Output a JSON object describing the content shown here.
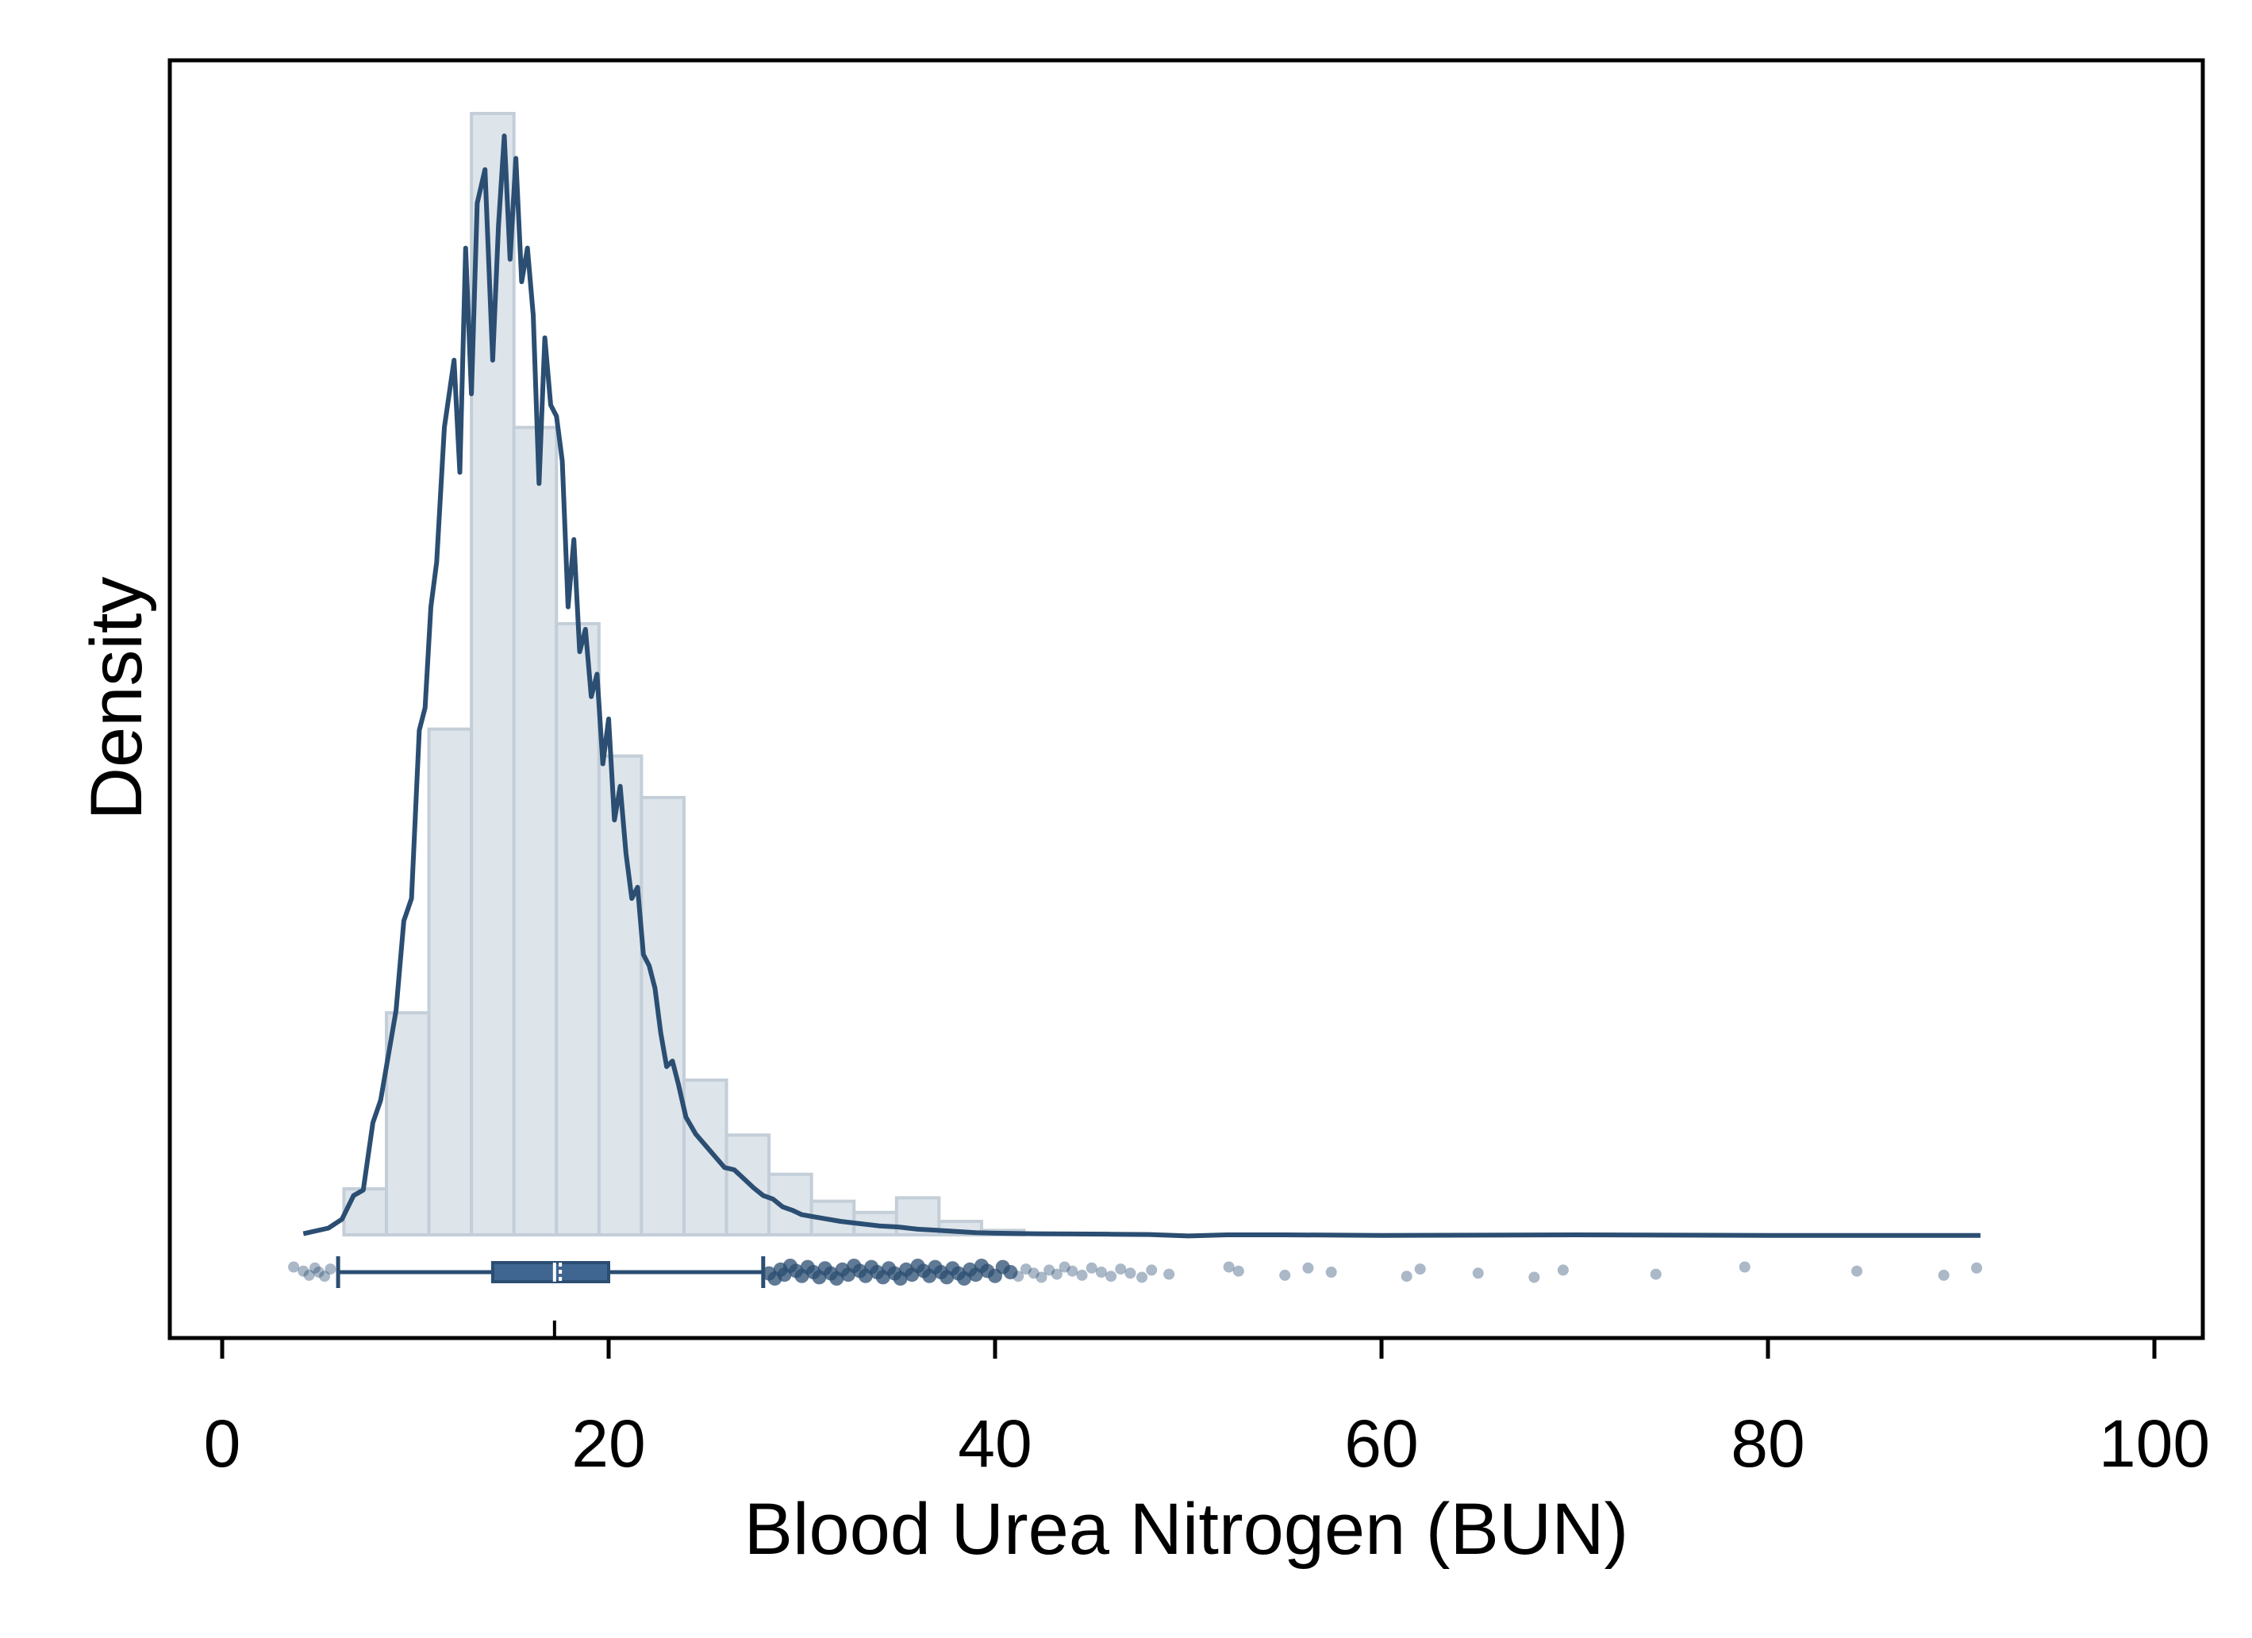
{
  "chart_data": {
    "type": "histogram",
    "xlabel": "Blood Urea Nitrogen (BUN)",
    "ylabel": "Density",
    "xlim": [
      -1.5,
      103
    ],
    "x_ticks": [
      0,
      20,
      40,
      60,
      80,
      100
    ],
    "x_tick_labels": [
      "0",
      "20",
      "40",
      "60",
      "80",
      "100"
    ],
    "y_ticks_shown": false,
    "grid": false,
    "legend": "none",
    "histogram": {
      "bin_width": 2.2,
      "bins": [
        {
          "x0": 6.3,
          "x1": 8.5,
          "height": 0.041
        },
        {
          "x0": 8.5,
          "x1": 10.7,
          "height": 0.198
        },
        {
          "x0": 10.7,
          "x1": 12.9,
          "height": 0.451
        },
        {
          "x0": 12.9,
          "x1": 15.1,
          "height": 1.0
        },
        {
          "x0": 15.1,
          "x1": 17.3,
          "height": 0.72
        },
        {
          "x0": 17.3,
          "x1": 19.5,
          "height": 0.545
        },
        {
          "x0": 19.5,
          "x1": 21.7,
          "height": 0.427
        },
        {
          "x0": 21.7,
          "x1": 23.9,
          "height": 0.39
        },
        {
          "x0": 23.9,
          "x1": 26.1,
          "height": 0.138
        },
        {
          "x0": 26.1,
          "x1": 28.3,
          "height": 0.089
        },
        {
          "x0": 28.3,
          "x1": 30.5,
          "height": 0.054
        },
        {
          "x0": 30.5,
          "x1": 32.7,
          "height": 0.03
        },
        {
          "x0": 32.7,
          "x1": 34.9,
          "height": 0.02
        },
        {
          "x0": 34.9,
          "x1": 37.1,
          "height": 0.033
        },
        {
          "x0": 37.1,
          "x1": 39.3,
          "height": 0.012
        },
        {
          "x0": 39.3,
          "x1": 41.5,
          "height": 0.004
        }
      ]
    },
    "density_curve": {
      "x": [
        4.2,
        5.5,
        6.2,
        6.8,
        7.3,
        7.8,
        8.2,
        8.6,
        9.0,
        9.4,
        9.8,
        10.2,
        10.5,
        10.8,
        11.1,
        11.5,
        12.0,
        12.3,
        12.6,
        12.9,
        13.2,
        13.6,
        14.0,
        14.3,
        14.6,
        14.9,
        15.2,
        15.5,
        15.8,
        16.1,
        16.4,
        16.7,
        17.0,
        17.3,
        17.6,
        17.9,
        18.2,
        18.5,
        18.8,
        19.1,
        19.4,
        19.7,
        20.0,
        20.3,
        20.6,
        20.9,
        21.2,
        21.5,
        21.8,
        22.1,
        22.4,
        22.7,
        23.0,
        23.3,
        23.6,
        24.0,
        24.5,
        25.0,
        25.5,
        26.0,
        26.5,
        27.0,
        27.5,
        28.0,
        28.5,
        29.0,
        29.5,
        30.0,
        31.0,
        32.0,
        33.0,
        34.0,
        35.0,
        36.0,
        37.0,
        38.0,
        39.0,
        40.0,
        42.0,
        44.0,
        46.0,
        48.0,
        50.0,
        52.0,
        55.0,
        60.0,
        70.0,
        80.0,
        91.0
      ],
      "y": [
        0.001,
        0.006,
        0.014,
        0.035,
        0.04,
        0.1,
        0.12,
        0.16,
        0.2,
        0.28,
        0.3,
        0.45,
        0.47,
        0.56,
        0.6,
        0.72,
        0.78,
        0.68,
        0.88,
        0.75,
        0.92,
        0.95,
        0.78,
        0.9,
        0.98,
        0.87,
        0.96,
        0.85,
        0.88,
        0.82,
        0.67,
        0.8,
        0.74,
        0.73,
        0.69,
        0.56,
        0.62,
        0.52,
        0.54,
        0.48,
        0.5,
        0.42,
        0.46,
        0.37,
        0.4,
        0.34,
        0.3,
        0.31,
        0.25,
        0.24,
        0.22,
        0.18,
        0.15,
        0.155,
        0.135,
        0.105,
        0.09,
        0.08,
        0.07,
        0.06,
        0.058,
        0.05,
        0.042,
        0.035,
        0.032,
        0.025,
        0.022,
        0.018,
        0.015,
        0.012,
        0.01,
        0.008,
        0.007,
        0.005,
        0.004,
        0.003,
        0.002,
        0.0015,
        0.001,
        0.0008,
        0.0006,
        0.0003,
        -0.001,
        0.0,
        0.0,
        -0.0005,
        0.0,
        -0.0005,
        -0.0005
      ]
    },
    "boxplot": {
      "whisker_low": 6.0,
      "q1": 14.0,
      "median": 17.2,
      "mean": 17.5,
      "q3": 20.0,
      "whisker_high": 28.0
    },
    "outliers_low": [
      3.7,
      4.2,
      4.5,
      4.8,
      5.0,
      5.3,
      5.6
    ],
    "outliers_high": [
      28.3,
      28.6,
      28.9,
      29.1,
      29.4,
      29.7,
      30.0,
      30.3,
      30.6,
      30.9,
      31.2,
      31.5,
      31.8,
      32.1,
      32.4,
      32.7,
      33.0,
      33.3,
      33.6,
      33.9,
      34.2,
      34.5,
      34.8,
      35.1,
      35.4,
      35.7,
      36.0,
      36.3,
      36.6,
      36.9,
      37.2,
      37.5,
      37.8,
      38.1,
      38.4,
      38.7,
      39.0,
      39.3,
      39.6,
      40.0,
      40.4,
      40.8,
      41.2,
      41.6,
      42.0,
      42.4,
      42.8,
      43.2,
      43.6,
      44.0,
      44.5,
      45.0,
      45.5,
      46.0,
      46.5,
      47.0,
      47.6,
      48.1,
      49.0,
      52.1,
      52.6,
      55.0,
      56.2,
      57.4,
      61.3,
      62.0,
      65.0,
      67.9,
      69.4,
      74.2,
      78.8,
      84.6,
      89.1,
      90.8
    ]
  }
}
